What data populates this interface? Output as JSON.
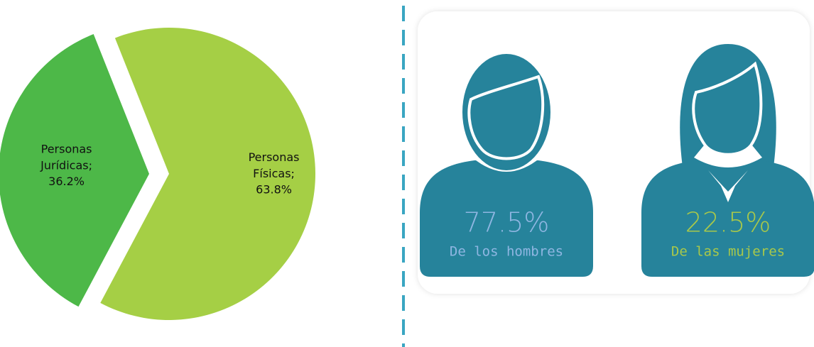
{
  "chart_data": [
    {
      "type": "pie",
      "categories": [
        "Personas Jurídicas;",
        "Personas Físicas;"
      ],
      "values": [
        36.2,
        63.8
      ],
      "value_labels": [
        "36.2%",
        "63.8%"
      ],
      "colors": [
        "#4db848",
        "#a5cf45"
      ]
    },
    {
      "type": "pictogram",
      "categories": [
        "De los hombres",
        "De las mujeres"
      ],
      "values": [
        77.5,
        22.5
      ],
      "value_labels": [
        "77.5%",
        "22.5%"
      ],
      "colors": [
        "#8fb6e2",
        "#a8c84a"
      ]
    }
  ]
}
